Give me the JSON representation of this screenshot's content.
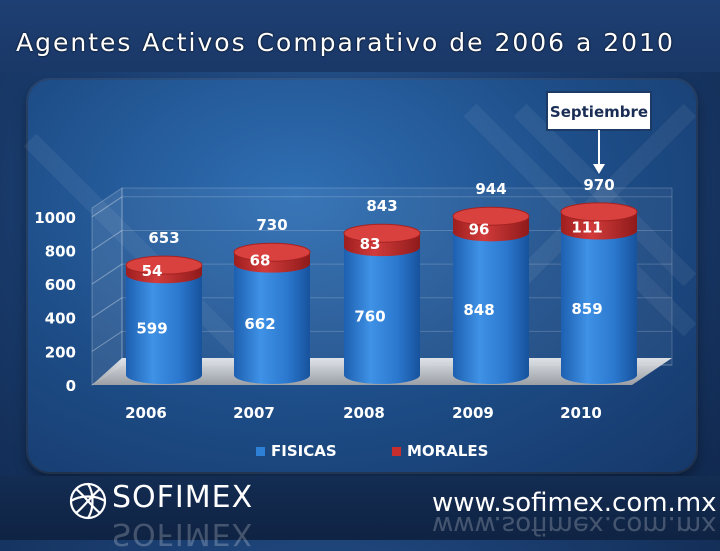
{
  "slide": {
    "title": "Agentes Activos Comparativo de 2006 a 2010",
    "brand": "SOFIMEX",
    "website": "www.sofimex.com.mx"
  },
  "chart_data": {
    "type": "bar",
    "stacked": true,
    "categories": [
      "2006",
      "2007",
      "2008",
      "2009",
      "2010"
    ],
    "series": [
      {
        "name": "FISICAS",
        "values": [
          599,
          662,
          760,
          848,
          859
        ],
        "color": "#2e7fd6"
      },
      {
        "name": "MORALES",
        "values": [
          54,
          68,
          83,
          96,
          111
        ],
        "color": "#c62d2d"
      }
    ],
    "totals": [
      653,
      730,
      843,
      944,
      970
    ],
    "yticks": [
      0,
      200,
      400,
      600,
      800,
      1000
    ],
    "ylim": [
      0,
      1000
    ],
    "legend_position": "bottom",
    "annotation": {
      "label": "Septiembre",
      "category": "2010"
    }
  }
}
